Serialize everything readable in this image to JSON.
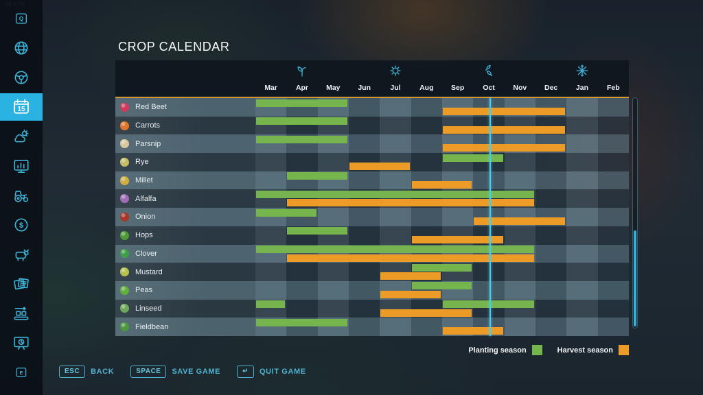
{
  "fps_counter": "38 FPS",
  "page_title": "CROP CALENDAR",
  "sidebar": {
    "items": [
      {
        "icon": "key-q",
        "key_label": "Q",
        "selected": false
      },
      {
        "icon": "map",
        "selected": false
      },
      {
        "icon": "steering-wheel",
        "selected": false
      },
      {
        "icon": "calendar",
        "key_label": "15",
        "selected": true
      },
      {
        "icon": "weather",
        "selected": false
      },
      {
        "icon": "statistics",
        "selected": false
      },
      {
        "icon": "vehicles",
        "selected": false
      },
      {
        "icon": "finances",
        "selected": false
      },
      {
        "icon": "animals",
        "selected": false
      },
      {
        "icon": "contracts",
        "selected": false
      },
      {
        "icon": "production-chains",
        "selected": false
      },
      {
        "icon": "map-overview",
        "selected": false
      },
      {
        "icon": "key-e",
        "key_label": "E",
        "selected": false
      }
    ]
  },
  "calendar": {
    "months": [
      "Mar",
      "Apr",
      "May",
      "Jun",
      "Jul",
      "Aug",
      "Sep",
      "Oct",
      "Nov",
      "Dec",
      "Jan",
      "Feb"
    ],
    "seasons": [
      {
        "name": "spring",
        "month_index": 1
      },
      {
        "name": "summer",
        "month_index": 4
      },
      {
        "name": "autumn",
        "month_index": 7
      },
      {
        "name": "winter",
        "month_index": 10
      }
    ],
    "day_indicator": {
      "month_index": 7,
      "fraction_of_month": 0.52
    },
    "crops": [
      {
        "name": "Red Beet",
        "icon_color": "#cf3b5c",
        "plant": [
          [
            0,
            3
          ]
        ],
        "harvest": [
          [
            6,
            10
          ]
        ]
      },
      {
        "name": "Carrots",
        "icon_color": "#e0762c",
        "plant": [
          [
            0,
            3
          ]
        ],
        "harvest": [
          [
            6,
            10
          ]
        ]
      },
      {
        "name": "Parsnip",
        "icon_color": "#d9c89e",
        "plant": [
          [
            0,
            3
          ]
        ],
        "harvest": [
          [
            6,
            10
          ]
        ]
      },
      {
        "name": "Rye",
        "icon_color": "#c6bb66",
        "plant": [
          [
            6,
            8
          ]
        ],
        "harvest": [
          [
            3,
            5
          ]
        ]
      },
      {
        "name": "Millet",
        "icon_color": "#cfae42",
        "plant": [
          [
            1,
            3
          ]
        ],
        "harvest": [
          [
            5,
            7
          ]
        ]
      },
      {
        "name": "Alfalfa",
        "icon_color": "#a06cb5",
        "plant": [
          [
            0,
            9
          ]
        ],
        "harvest": [
          [
            1,
            9
          ]
        ]
      },
      {
        "name": "Onion",
        "icon_color": "#a63828",
        "plant": [
          [
            0,
            2
          ]
        ],
        "harvest": [
          [
            7,
            10
          ]
        ]
      },
      {
        "name": "Hops",
        "icon_color": "#4f9a38",
        "plant": [
          [
            1,
            3
          ]
        ],
        "harvest": [
          [
            5,
            8
          ]
        ]
      },
      {
        "name": "Clover",
        "icon_color": "#3f9e4a",
        "plant": [
          [
            0,
            9
          ]
        ],
        "harvest": [
          [
            1,
            9
          ]
        ]
      },
      {
        "name": "Mustard",
        "icon_color": "#b5c04e",
        "plant": [
          [
            5,
            7
          ]
        ],
        "harvest": [
          [
            4,
            6
          ]
        ]
      },
      {
        "name": "Peas",
        "icon_color": "#62b13e",
        "plant": [
          [
            5,
            7
          ]
        ],
        "harvest": [
          [
            4,
            6
          ]
        ]
      },
      {
        "name": "Linseed",
        "icon_color": "#6fa85a",
        "plant": [
          [
            0,
            1
          ],
          [
            6,
            9
          ]
        ],
        "harvest": [
          [
            4,
            7
          ]
        ]
      },
      {
        "name": "Fieldbean",
        "icon_color": "#4c9840",
        "plant": [
          [
            0,
            3
          ]
        ],
        "harvest": [
          [
            6,
            8
          ]
        ]
      }
    ]
  },
  "legend": {
    "planting_label": "Planting season",
    "harvest_label": "Harvest season"
  },
  "colors": {
    "planting": "#76b54e",
    "harvest": "#ec9b26",
    "accent": "#29b2e2",
    "day_line": "#3fd0f0",
    "header_underline": "#cf9a30"
  },
  "footer": {
    "buttons": [
      {
        "key": "ESC",
        "label": "BACK"
      },
      {
        "key": "SPACE",
        "label": "SAVE GAME"
      },
      {
        "key": "↵",
        "label": "QUIT GAME"
      }
    ]
  }
}
